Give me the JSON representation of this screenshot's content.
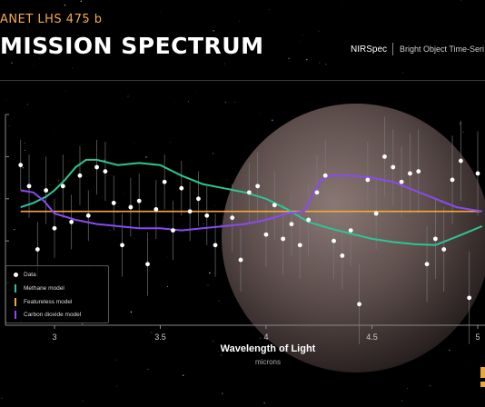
{
  "header": {
    "planet_label": "ANET LHS 475 b",
    "title": "MISSION SPECTRUM",
    "instrument": "NIRSpec",
    "mode": "Bright Object Time-Seri"
  },
  "colors": {
    "data": "#ffffff",
    "methane": "#2ec497",
    "featureless": "#f2a93b",
    "co2": "#8a4af3",
    "errorbar": "#7a7a7a"
  },
  "chart_data": {
    "type": "scatter",
    "xlabel": "Wavelength of Light",
    "xunit": "microns",
    "xlim": [
      2.8,
      5.02
    ],
    "ylim": [
      0,
      10
    ],
    "xticks": [
      3,
      3.5,
      4,
      4.5,
      5
    ],
    "xtick_labels": [
      "3",
      "3.5",
      "4",
      "4.5",
      "5"
    ],
    "grid": false,
    "legend_position": "bottom-left",
    "legend": [
      "Data",
      "Methane model",
      "Featureless model",
      "Carbon dioxide model"
    ],
    "series": [
      {
        "name": "Data",
        "kind": "points",
        "x": [
          2.84,
          2.88,
          2.92,
          2.96,
          3.0,
          3.04,
          3.08,
          3.12,
          3.16,
          3.2,
          3.24,
          3.28,
          3.32,
          3.36,
          3.4,
          3.44,
          3.48,
          3.52,
          3.56,
          3.6,
          3.64,
          3.68,
          3.72,
          3.76,
          3.84,
          3.88,
          3.92,
          3.96,
          4.0,
          4.04,
          4.08,
          4.12,
          4.16,
          4.2,
          4.24,
          4.28,
          4.32,
          4.36,
          4.4,
          4.44,
          4.48,
          4.52,
          4.56,
          4.6,
          4.64,
          4.68,
          4.72,
          4.76,
          4.8,
          4.84,
          4.88,
          4.92,
          4.96,
          5.0
        ],
        "y": [
          7.6,
          6.6,
          3.6,
          6.4,
          4.6,
          6.6,
          4.9,
          7.1,
          5.2,
          7.5,
          7.3,
          5.8,
          3.8,
          5.6,
          5.9,
          2.9,
          5.5,
          6.8,
          4.5,
          6.5,
          5.4,
          6.0,
          5.2,
          3.8,
          5.1,
          3.1,
          6.3,
          6.6,
          4.3,
          5.7,
          4.1,
          4.8,
          3.8,
          5.0,
          6.3,
          7.1,
          4.0,
          3.3,
          4.5,
          1.0,
          6.9,
          5.3,
          8.0,
          7.5,
          6.8,
          7.2,
          7.3,
          2.9,
          4.1,
          3.6,
          6.9,
          7.8,
          1.3,
          7.2
        ],
        "error": [
          1.2,
          1.5,
          1.3,
          1.6,
          1.4,
          1.5,
          1.3,
          1.4,
          1.2,
          1.3,
          1.4,
          1.3,
          1.5,
          1.4,
          1.3,
          1.5,
          1.4,
          1.3,
          1.4,
          1.3,
          1.4,
          1.3,
          1.4,
          1.5,
          1.6,
          1.5,
          1.4,
          1.6,
          1.5,
          1.6,
          1.7,
          1.5,
          1.6,
          1.7,
          1.8,
          1.7,
          1.8,
          1.6,
          1.7,
          1.9,
          1.8,
          1.7,
          1.9,
          1.8,
          1.7,
          1.9,
          2.0,
          1.8,
          1.9,
          2.0,
          2.1,
          1.9,
          2.2,
          2.0
        ]
      },
      {
        "name": "Methane model",
        "kind": "line",
        "x": [
          2.84,
          2.9,
          2.96,
          3.0,
          3.05,
          3.1,
          3.15,
          3.2,
          3.3,
          3.4,
          3.5,
          3.6,
          3.7,
          3.8,
          3.9,
          4.0,
          4.1,
          4.2,
          4.3,
          4.4,
          4.5,
          4.6,
          4.7,
          4.8,
          4.9,
          5.02
        ],
        "y": [
          5.6,
          5.8,
          6.1,
          6.4,
          6.9,
          7.5,
          7.85,
          7.85,
          7.6,
          7.7,
          7.6,
          7.1,
          6.7,
          6.5,
          6.3,
          6.0,
          5.5,
          4.9,
          4.6,
          4.35,
          4.1,
          3.95,
          3.85,
          3.8,
          4.2,
          4.7
        ]
      },
      {
        "name": "Featureless model",
        "kind": "line",
        "x": [
          2.84,
          5.02
        ],
        "y": [
          5.4,
          5.4
        ]
      },
      {
        "name": "Carbon dioxide model",
        "kind": "line",
        "x": [
          2.84,
          2.9,
          2.95,
          3.0,
          3.1,
          3.2,
          3.3,
          3.4,
          3.5,
          3.6,
          3.7,
          3.8,
          3.9,
          4.0,
          4.1,
          4.18,
          4.22,
          4.26,
          4.3,
          4.35,
          4.4,
          4.5,
          4.6,
          4.7,
          4.8,
          4.9,
          5.02
        ],
        "y": [
          6.4,
          6.3,
          5.9,
          5.3,
          5.0,
          4.8,
          4.7,
          4.6,
          4.6,
          4.5,
          4.6,
          4.7,
          4.8,
          5.0,
          5.3,
          5.4,
          6.2,
          6.9,
          7.1,
          7.1,
          7.1,
          7.0,
          6.8,
          6.4,
          6.0,
          5.6,
          5.4
        ]
      }
    ]
  }
}
